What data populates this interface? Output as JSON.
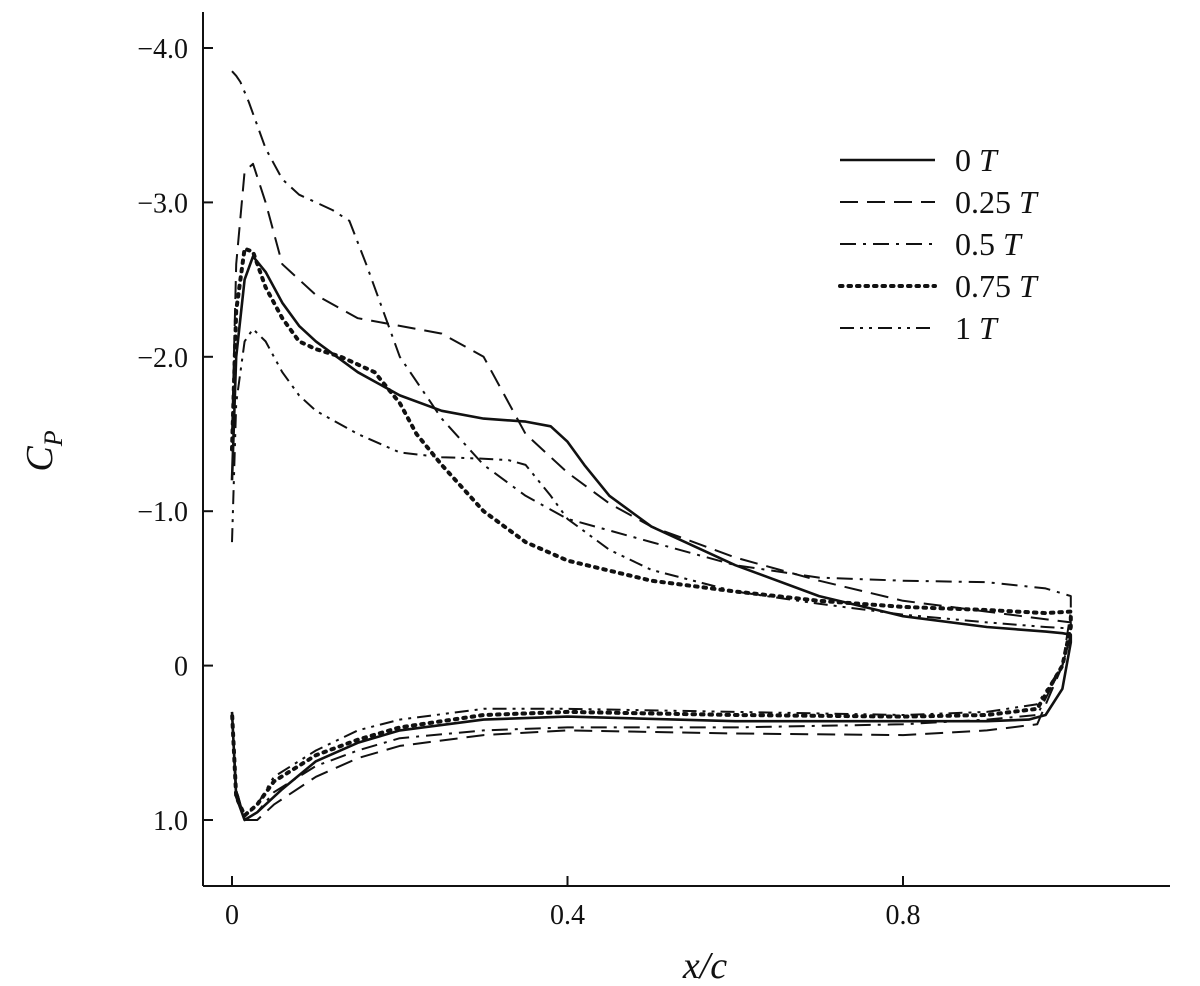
{
  "chart_data": {
    "type": "line",
    "title": "",
    "xlabel": "x/c",
    "ylabel": "C_P",
    "ylabel_main": "C",
    "ylabel_sub": "P",
    "xlim": [
      -0.04,
      1.14
    ],
    "ylim": [
      1.35,
      -4.2
    ],
    "y_inverted": true,
    "x_ticks": [
      0,
      0.4,
      0.8
    ],
    "x_tick_labels": [
      "0",
      "0.4",
      "0.8"
    ],
    "y_ticks": [
      -4.0,
      -3.0,
      -2.0,
      -1.0,
      0,
      1.0
    ],
    "y_tick_labels": [
      "-4.0",
      "-3.0",
      "-2.0",
      "-1.0",
      "0",
      "1.0"
    ],
    "grid": false,
    "legend_position": "top-right",
    "series": [
      {
        "name": "0 T",
        "style": "solid",
        "x": [
          0.0,
          0.005,
          0.015,
          0.025,
          0.04,
          0.06,
          0.08,
          0.1,
          0.15,
          0.2,
          0.25,
          0.3,
          0.35,
          0.38,
          0.4,
          0.42,
          0.45,
          0.5,
          0.6,
          0.7,
          0.8,
          0.9,
          0.97,
          0.99,
          1.0,
          1.0,
          0.99,
          0.97,
          0.95,
          0.9,
          0.8,
          0.6,
          0.4,
          0.3,
          0.2,
          0.15,
          0.1,
          0.06,
          0.03,
          0.015,
          0.005,
          0.0
        ],
        "y": [
          -1.2,
          -2.0,
          -2.5,
          -2.65,
          -2.55,
          -2.35,
          -2.2,
          -2.1,
          -1.9,
          -1.75,
          -1.65,
          -1.6,
          -1.58,
          -1.55,
          -1.45,
          -1.3,
          -1.1,
          -0.9,
          -0.65,
          -0.45,
          -0.32,
          -0.25,
          -0.22,
          -0.21,
          -0.2,
          -0.15,
          0.15,
          0.32,
          0.35,
          0.36,
          0.36,
          0.36,
          0.33,
          0.35,
          0.42,
          0.5,
          0.62,
          0.8,
          0.95,
          1.0,
          0.85,
          0.3
        ]
      },
      {
        "name": "0.25 T",
        "style": "dashed",
        "x": [
          0.0,
          0.005,
          0.015,
          0.025,
          0.04,
          0.06,
          0.1,
          0.15,
          0.2,
          0.25,
          0.3,
          0.32,
          0.35,
          0.4,
          0.45,
          0.5,
          0.6,
          0.7,
          0.8,
          0.9,
          0.97,
          1.0,
          1.0,
          0.99,
          0.96,
          0.9,
          0.8,
          0.6,
          0.4,
          0.3,
          0.2,
          0.15,
          0.1,
          0.05,
          0.03,
          0.015,
          0.005,
          0.0
        ],
        "y": [
          -1.5,
          -2.6,
          -3.2,
          -3.25,
          -3.0,
          -2.6,
          -2.4,
          -2.25,
          -2.2,
          -2.15,
          -2.0,
          -1.8,
          -1.5,
          -1.25,
          -1.05,
          -0.9,
          -0.7,
          -0.55,
          -0.42,
          -0.35,
          -0.3,
          -0.28,
          -0.2,
          0.0,
          0.38,
          0.42,
          0.45,
          0.44,
          0.42,
          0.45,
          0.52,
          0.6,
          0.72,
          0.9,
          1.0,
          1.0,
          0.8,
          0.3
        ]
      },
      {
        "name": "0.5 T",
        "style": "dash-dot",
        "x": [
          0.0,
          0.005,
          0.01,
          0.02,
          0.04,
          0.06,
          0.08,
          0.1,
          0.12,
          0.14,
          0.16,
          0.18,
          0.2,
          0.25,
          0.3,
          0.35,
          0.4,
          0.5,
          0.6,
          0.7,
          0.8,
          0.9,
          0.97,
          1.0,
          1.0,
          0.99,
          0.96,
          0.9,
          0.8,
          0.6,
          0.4,
          0.3,
          0.2,
          0.15,
          0.1,
          0.05,
          0.03,
          0.015,
          0.005,
          0.0
        ],
        "y": [
          -3.85,
          -3.82,
          -3.78,
          -3.65,
          -3.35,
          -3.15,
          -3.05,
          -3.0,
          -2.95,
          -2.88,
          -2.6,
          -2.3,
          -2.0,
          -1.6,
          -1.3,
          -1.1,
          -0.95,
          -0.8,
          -0.65,
          -0.57,
          -0.55,
          -0.54,
          -0.5,
          -0.45,
          -0.35,
          0.0,
          0.32,
          0.35,
          0.38,
          0.4,
          0.4,
          0.42,
          0.47,
          0.55,
          0.65,
          0.82,
          0.95,
          1.0,
          0.8,
          0.3
        ]
      },
      {
        "name": "0.75 T",
        "style": "dotted",
        "x": [
          0.0,
          0.005,
          0.015,
          0.025,
          0.04,
          0.06,
          0.08,
          0.1,
          0.13,
          0.17,
          0.2,
          0.22,
          0.25,
          0.3,
          0.35,
          0.4,
          0.5,
          0.6,
          0.7,
          0.8,
          0.9,
          0.97,
          1.0,
          1.0,
          0.99,
          0.96,
          0.9,
          0.8,
          0.6,
          0.4,
          0.3,
          0.2,
          0.15,
          0.1,
          0.05,
          0.03,
          0.015,
          0.005,
          0.0
        ],
        "y": [
          -1.4,
          -2.3,
          -2.7,
          -2.68,
          -2.45,
          -2.25,
          -2.1,
          -2.05,
          -2.0,
          -1.9,
          -1.7,
          -1.5,
          -1.3,
          -1.0,
          -0.8,
          -0.68,
          -0.55,
          -0.48,
          -0.42,
          -0.38,
          -0.36,
          -0.34,
          -0.35,
          -0.25,
          0.0,
          0.28,
          0.32,
          0.33,
          0.32,
          0.3,
          0.32,
          0.4,
          0.48,
          0.58,
          0.75,
          0.9,
          0.97,
          0.85,
          0.3
        ]
      },
      {
        "name": "1 T",
        "style": "dash-dot-dot",
        "x": [
          0.0,
          0.005,
          0.015,
          0.025,
          0.04,
          0.06,
          0.08,
          0.1,
          0.15,
          0.2,
          0.25,
          0.3,
          0.33,
          0.35,
          0.38,
          0.4,
          0.45,
          0.5,
          0.6,
          0.7,
          0.8,
          0.9,
          0.97,
          1.0,
          1.0,
          0.99,
          0.96,
          0.9,
          0.8,
          0.6,
          0.4,
          0.3,
          0.2,
          0.15,
          0.1,
          0.05,
          0.03,
          0.015,
          0.005,
          0.0
        ],
        "y": [
          -0.8,
          -1.7,
          -2.1,
          -2.18,
          -2.1,
          -1.9,
          -1.75,
          -1.65,
          -1.5,
          -1.38,
          -1.35,
          -1.34,
          -1.33,
          -1.3,
          -1.1,
          -0.95,
          -0.75,
          -0.62,
          -0.48,
          -0.4,
          -0.33,
          -0.28,
          -0.25,
          -0.24,
          -0.2,
          0.0,
          0.25,
          0.3,
          0.32,
          0.3,
          0.28,
          0.28,
          0.35,
          0.42,
          0.55,
          0.72,
          0.9,
          0.98,
          0.85,
          0.3
        ]
      }
    ]
  }
}
